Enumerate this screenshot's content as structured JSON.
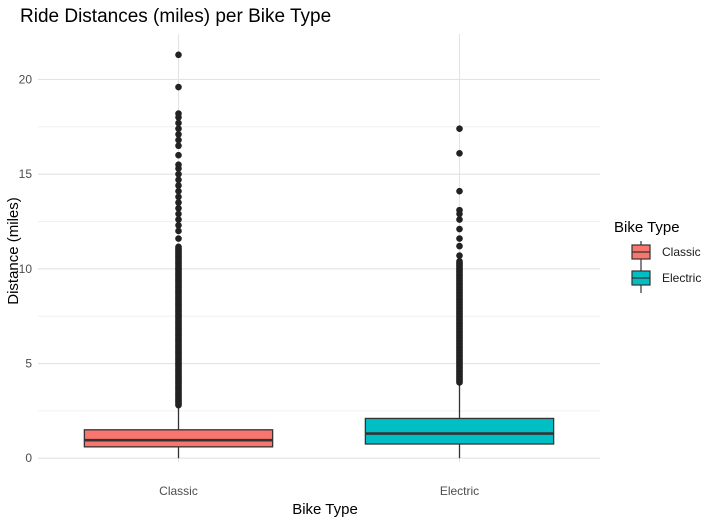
{
  "chart_data": {
    "type": "box",
    "title": "Ride Distances (miles) per Bike Type",
    "xlabel": "Bike Type",
    "ylabel": "Distance (miles)",
    "ylim": [
      -0.2,
      22.4
    ],
    "yticks": [
      0,
      5,
      10,
      15,
      20
    ],
    "grid": true,
    "legend": {
      "title": "Bike Type",
      "position": "right"
    },
    "categories": [
      "Classic",
      "Electric"
    ],
    "series": [
      {
        "name": "Classic",
        "color": "#F8766D",
        "whisker_low": 0.0,
        "q1": 0.6,
        "median": 0.95,
        "q3": 1.5,
        "whisker_high": 2.8,
        "outlier_dense_range": [
          2.8,
          11.2
        ],
        "outliers": [
          11.6,
          12.0,
          12.3,
          12.6,
          12.9,
          13.2,
          13.5,
          13.8,
          14.1,
          14.4,
          14.7,
          15.0,
          15.3,
          15.5,
          16.0,
          16.5,
          16.8,
          17.1,
          17.4,
          17.7,
          18.0,
          18.2,
          19.6,
          21.3
        ]
      },
      {
        "name": "Electric",
        "color": "#00BFC4",
        "whisker_low": 0.0,
        "q1": 0.75,
        "median": 1.3,
        "q3": 2.1,
        "whisker_high": 4.0,
        "outlier_dense_range": [
          4.0,
          10.4
        ],
        "outliers": [
          10.7,
          11.2,
          11.6,
          12.1,
          12.6,
          12.9,
          13.1,
          14.1,
          16.1,
          17.4
        ]
      }
    ]
  }
}
